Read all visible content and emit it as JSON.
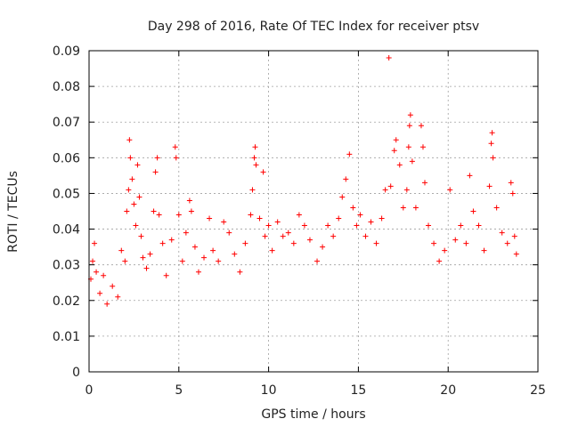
{
  "chart_data": {
    "type": "scatter",
    "title": "Day 298 of 2016, Rate Of TEC Index for receiver ptsv",
    "xlabel": "GPS time / hours",
    "ylabel": "ROTI / TECUs",
    "xlim": [
      0,
      25
    ],
    "ylim": [
      0,
      0.09
    ],
    "x_ticks": [
      0,
      5,
      10,
      15,
      20,
      25
    ],
    "x_tick_labels": [
      "0",
      "5",
      "10",
      "15",
      "20",
      "25"
    ],
    "y_ticks": [
      0,
      0.01,
      0.02,
      0.03,
      0.04,
      0.05,
      0.06,
      0.07,
      0.08,
      0.09
    ],
    "y_tick_labels": [
      "0",
      "0.01",
      "0.02",
      "0.03",
      "0.04",
      "0.05",
      "0.06",
      "0.07",
      "0.08",
      "0.09"
    ],
    "grid": true,
    "marker": "+",
    "color": "#ff0000",
    "series": [
      {
        "name": "ROTI",
        "points": [
          [
            0.1,
            0.026
          ],
          [
            0.2,
            0.031
          ],
          [
            0.3,
            0.036
          ],
          [
            0.4,
            0.028
          ],
          [
            0.6,
            0.022
          ],
          [
            0.8,
            0.027
          ],
          [
            1.0,
            0.019
          ],
          [
            1.3,
            0.024
          ],
          [
            1.6,
            0.021
          ],
          [
            1.8,
            0.034
          ],
          [
            2.0,
            0.031
          ],
          [
            2.1,
            0.045
          ],
          [
            2.2,
            0.051
          ],
          [
            2.25,
            0.065
          ],
          [
            2.3,
            0.06
          ],
          [
            2.4,
            0.054
          ],
          [
            2.5,
            0.047
          ],
          [
            2.6,
            0.041
          ],
          [
            2.7,
            0.058
          ],
          [
            2.8,
            0.049
          ],
          [
            2.9,
            0.038
          ],
          [
            3.0,
            0.032
          ],
          [
            3.2,
            0.029
          ],
          [
            3.4,
            0.033
          ],
          [
            3.6,
            0.045
          ],
          [
            3.7,
            0.056
          ],
          [
            3.8,
            0.06
          ],
          [
            3.9,
            0.044
          ],
          [
            4.1,
            0.036
          ],
          [
            4.3,
            0.027
          ],
          [
            4.6,
            0.037
          ],
          [
            4.8,
            0.063
          ],
          [
            4.85,
            0.06
          ],
          [
            5.0,
            0.044
          ],
          [
            5.2,
            0.031
          ],
          [
            5.4,
            0.039
          ],
          [
            5.6,
            0.048
          ],
          [
            5.7,
            0.045
          ],
          [
            5.9,
            0.035
          ],
          [
            6.1,
            0.028
          ],
          [
            6.4,
            0.032
          ],
          [
            6.7,
            0.043
          ],
          [
            6.9,
            0.034
          ],
          [
            7.2,
            0.031
          ],
          [
            7.5,
            0.042
          ],
          [
            7.8,
            0.039
          ],
          [
            8.1,
            0.033
          ],
          [
            8.4,
            0.028
          ],
          [
            8.7,
            0.036
          ],
          [
            9.0,
            0.044
          ],
          [
            9.1,
            0.051
          ],
          [
            9.2,
            0.06
          ],
          [
            9.25,
            0.063
          ],
          [
            9.3,
            0.058
          ],
          [
            9.5,
            0.043
          ],
          [
            9.7,
            0.056
          ],
          [
            9.8,
            0.038
          ],
          [
            10.0,
            0.041
          ],
          [
            10.2,
            0.034
          ],
          [
            10.5,
            0.042
          ],
          [
            10.8,
            0.038
          ],
          [
            11.1,
            0.039
          ],
          [
            11.4,
            0.036
          ],
          [
            11.7,
            0.044
          ],
          [
            12.0,
            0.041
          ],
          [
            12.3,
            0.037
          ],
          [
            12.7,
            0.031
          ],
          [
            13.0,
            0.035
          ],
          [
            13.3,
            0.041
          ],
          [
            13.6,
            0.038
          ],
          [
            13.9,
            0.043
          ],
          [
            14.1,
            0.049
          ],
          [
            14.3,
            0.054
          ],
          [
            14.5,
            0.061
          ],
          [
            14.7,
            0.046
          ],
          [
            14.9,
            0.041
          ],
          [
            15.1,
            0.044
          ],
          [
            15.4,
            0.038
          ],
          [
            15.7,
            0.042
          ],
          [
            16.0,
            0.036
          ],
          [
            16.3,
            0.043
          ],
          [
            16.5,
            0.051
          ],
          [
            16.7,
            0.088
          ],
          [
            16.8,
            0.052
          ],
          [
            17.0,
            0.062
          ],
          [
            17.1,
            0.065
          ],
          [
            17.3,
            0.058
          ],
          [
            17.5,
            0.046
          ],
          [
            17.7,
            0.051
          ],
          [
            17.8,
            0.063
          ],
          [
            17.85,
            0.069
          ],
          [
            17.9,
            0.072
          ],
          [
            18.0,
            0.059
          ],
          [
            18.2,
            0.046
          ],
          [
            18.5,
            0.069
          ],
          [
            18.6,
            0.063
          ],
          [
            18.7,
            0.053
          ],
          [
            18.9,
            0.041
          ],
          [
            19.2,
            0.036
          ],
          [
            19.5,
            0.031
          ],
          [
            19.8,
            0.034
          ],
          [
            20.1,
            0.051
          ],
          [
            20.4,
            0.037
          ],
          [
            20.7,
            0.041
          ],
          [
            21.0,
            0.036
          ],
          [
            21.2,
            0.055
          ],
          [
            21.4,
            0.045
          ],
          [
            21.7,
            0.041
          ],
          [
            22.0,
            0.034
          ],
          [
            22.3,
            0.052
          ],
          [
            22.4,
            0.064
          ],
          [
            22.45,
            0.067
          ],
          [
            22.5,
            0.06
          ],
          [
            22.7,
            0.046
          ],
          [
            23.0,
            0.039
          ],
          [
            23.3,
            0.036
          ],
          [
            23.5,
            0.053
          ],
          [
            23.6,
            0.05
          ],
          [
            23.7,
            0.038
          ],
          [
            23.8,
            0.033
          ]
        ]
      }
    ]
  }
}
